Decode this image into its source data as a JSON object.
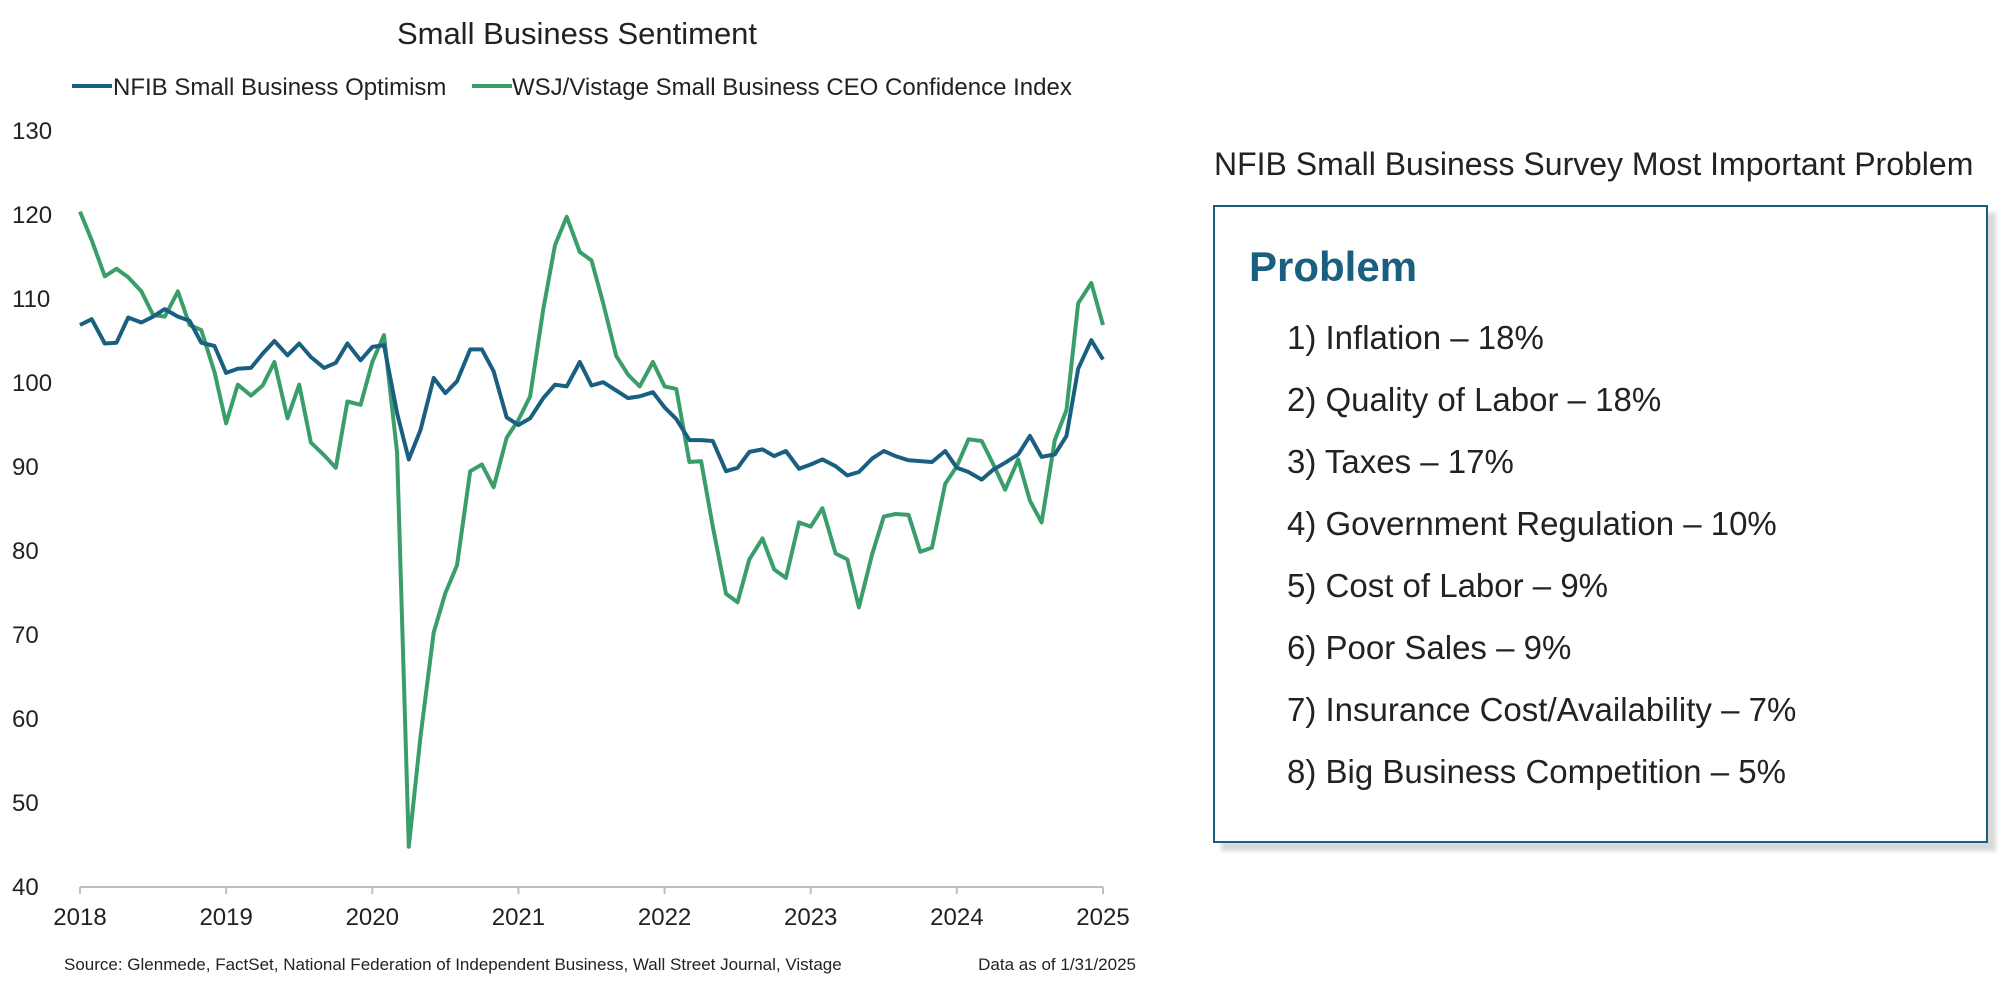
{
  "colors": {
    "nfib": "#1a5e80",
    "wsj": "#3a9e6a",
    "axis": "#bfbfbf",
    "panel_border": "#1a5e80"
  },
  "chart_data": {
    "type": "line",
    "title": "Small Business Sentiment",
    "xlabel": "",
    "ylabel": "",
    "ylim": [
      40,
      130
    ],
    "yticks": [
      40,
      50,
      60,
      70,
      80,
      90,
      100,
      110,
      120,
      130
    ],
    "xlim": [
      2018.0,
      2025.0
    ],
    "xticks": [
      "2018",
      "2019",
      "2020",
      "2021",
      "2022",
      "2023",
      "2024",
      "2025"
    ],
    "legend_position": "top-left",
    "grid": false,
    "series": [
      {
        "name": "NFIB Small Business Optimism",
        "color": "#1a5e80",
        "x": [
          2018.0,
          2018.08,
          2018.17,
          2018.25,
          2018.33,
          2018.42,
          2018.5,
          2018.58,
          2018.67,
          2018.75,
          2018.83,
          2018.92,
          2019.0,
          2019.08,
          2019.17,
          2019.25,
          2019.33,
          2019.42,
          2019.5,
          2019.58,
          2019.67,
          2019.75,
          2019.83,
          2019.92,
          2020.0,
          2020.08,
          2020.17,
          2020.25,
          2020.33,
          2020.42,
          2020.5,
          2020.58,
          2020.67,
          2020.75,
          2020.83,
          2020.92,
          2021.0,
          2021.08,
          2021.17,
          2021.25,
          2021.33,
          2021.42,
          2021.5,
          2021.58,
          2021.67,
          2021.75,
          2021.83,
          2021.92,
          2022.0,
          2022.08,
          2022.17,
          2022.25,
          2022.33,
          2022.42,
          2022.5,
          2022.58,
          2022.67,
          2022.75,
          2022.83,
          2022.92,
          2023.0,
          2023.08,
          2023.17,
          2023.25,
          2023.33,
          2023.42,
          2023.5,
          2023.58,
          2023.67,
          2023.75,
          2023.83,
          2023.92,
          2024.0,
          2024.08,
          2024.17,
          2024.25,
          2024.33,
          2024.42,
          2024.5,
          2024.58,
          2024.67,
          2024.75,
          2024.83,
          2024.92,
          2025.0
        ],
        "values": [
          106.9,
          107.6,
          104.7,
          104.8,
          107.8,
          107.2,
          107.9,
          108.8,
          107.9,
          107.4,
          104.8,
          104.4,
          101.2,
          101.7,
          101.8,
          103.5,
          105.0,
          103.3,
          104.7,
          103.1,
          101.8,
          102.4,
          104.7,
          102.7,
          104.3,
          104.5,
          96.4,
          90.9,
          94.4,
          100.6,
          98.8,
          100.2,
          104.0,
          104.0,
          101.4,
          95.9,
          95.0,
          95.8,
          98.2,
          99.8,
          99.6,
          102.5,
          99.7,
          100.1,
          99.1,
          98.2,
          98.4,
          98.9,
          97.1,
          95.7,
          93.2,
          93.2,
          93.1,
          89.5,
          89.9,
          91.8,
          92.1,
          91.3,
          91.9,
          89.8,
          90.3,
          90.9,
          90.1,
          89.0,
          89.4,
          91.0,
          91.9,
          91.3,
          90.8,
          90.7,
          90.6,
          91.9,
          89.9,
          89.4,
          88.5,
          89.7,
          90.5,
          91.5,
          93.7,
          91.2,
          91.5,
          93.7,
          101.7,
          105.1,
          102.8
        ]
      },
      {
        "name": "WSJ/Vistage Small Business CEO Confidence Index",
        "color": "#3a9e6a",
        "x": [
          2018.0,
          2018.08,
          2018.17,
          2018.25,
          2018.33,
          2018.42,
          2018.5,
          2018.58,
          2018.67,
          2018.75,
          2018.83,
          2018.92,
          2019.0,
          2019.08,
          2019.17,
          2019.25,
          2019.33,
          2019.42,
          2019.5,
          2019.58,
          2019.67,
          2019.75,
          2019.83,
          2019.92,
          2020.0,
          2020.08,
          2020.17,
          2020.25,
          2020.33,
          2020.42,
          2020.5,
          2020.58,
          2020.67,
          2020.75,
          2020.83,
          2020.92,
          2021.0,
          2021.08,
          2021.17,
          2021.25,
          2021.33,
          2021.42,
          2021.5,
          2021.58,
          2021.67,
          2021.75,
          2021.83,
          2021.92,
          2022.0,
          2022.08,
          2022.17,
          2022.25,
          2022.33,
          2022.42,
          2022.5,
          2022.58,
          2022.67,
          2022.75,
          2022.83,
          2022.92,
          2023.0,
          2023.08,
          2023.17,
          2023.25,
          2023.33,
          2023.42,
          2023.5,
          2023.58,
          2023.67,
          2023.75,
          2023.83,
          2023.92,
          2024.0,
          2024.08,
          2024.17,
          2024.25,
          2024.33,
          2024.42,
          2024.5,
          2024.58,
          2024.67,
          2024.75,
          2024.83,
          2024.92,
          2025.0
        ],
        "values": [
          120.4,
          117.0,
          112.7,
          113.6,
          112.6,
          110.9,
          108.1,
          107.9,
          110.9,
          106.9,
          106.3,
          101.3,
          95.2,
          99.8,
          98.5,
          99.7,
          102.5,
          95.8,
          99.8,
          92.9,
          91.4,
          89.9,
          97.8,
          97.4,
          102.5,
          105.7,
          91.7,
          44.8,
          57.9,
          70.3,
          75.0,
          78.3,
          89.5,
          90.3,
          87.6,
          93.5,
          95.6,
          98.4,
          108.8,
          116.4,
          119.8,
          115.6,
          114.6,
          109.5,
          103.2,
          101.0,
          99.6,
          102.5,
          99.6,
          99.3,
          90.6,
          90.7,
          82.9,
          74.9,
          73.9,
          79.0,
          81.5,
          77.8,
          76.8,
          83.4,
          82.9,
          85.1,
          79.7,
          79.0,
          73.3,
          79.6,
          84.1,
          84.4,
          84.3,
          79.9,
          80.4,
          88.0,
          90.1,
          93.3,
          93.1,
          90.3,
          87.3,
          90.9,
          86.0,
          83.4,
          93.2,
          96.8,
          109.5,
          111.9,
          106.9
        ]
      }
    ]
  },
  "footer": {
    "source": "Source: Glenmede, FactSet, National Federation of Independent Business, Wall Street Journal, Vistage",
    "date": "Data as of 1/31/2025"
  },
  "panel": {
    "title": "NFIB Small Business Survey Most Important Problem",
    "heading": "Problem",
    "items": [
      "1) Inflation – 18%",
      "2) Quality of Labor – 18%",
      "3) Taxes – 17%",
      "4) Government Regulation – 10%",
      "5) Cost of Labor – 9%",
      "6) Poor Sales – 9%",
      "7) Insurance Cost/Availability – 7%",
      "8) Big Business Competition – 5%"
    ]
  }
}
